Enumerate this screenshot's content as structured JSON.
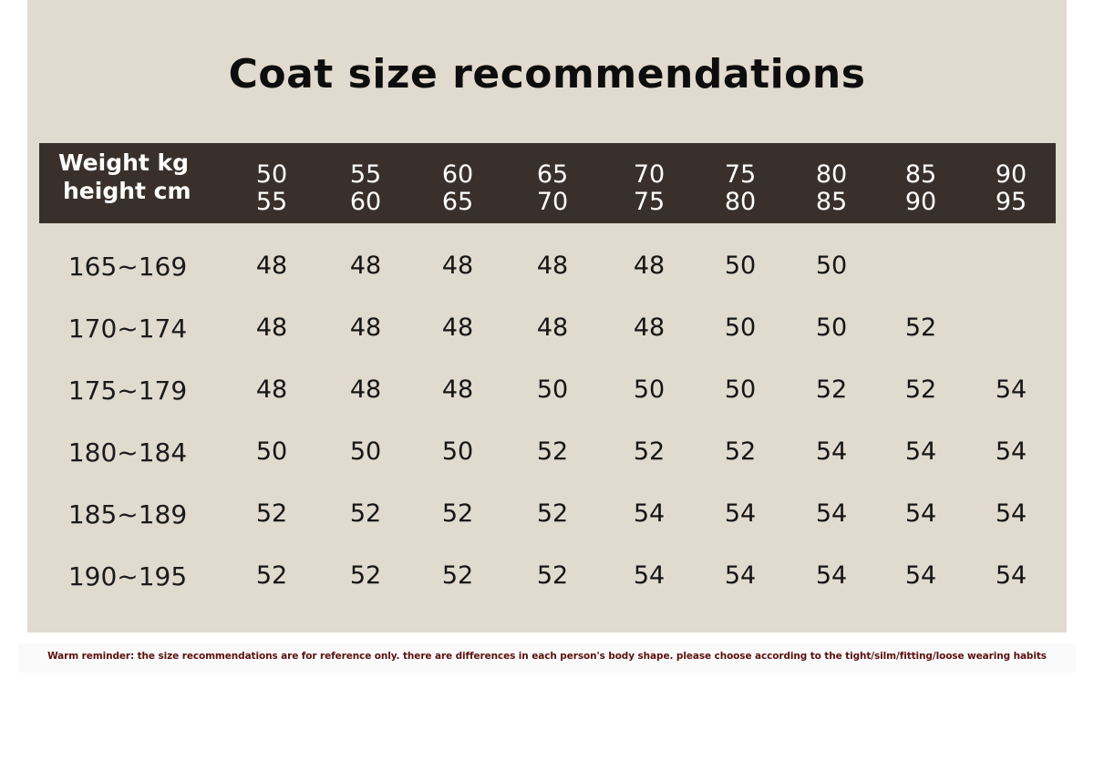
{
  "title": "Coat size recommendations",
  "header": {
    "label_line1": "Weight kg",
    "label_line2": "height cm",
    "weights": [
      [
        "50",
        "55"
      ],
      [
        "55",
        "60"
      ],
      [
        "60",
        "65"
      ],
      [
        "65",
        "70"
      ],
      [
        "70",
        "75"
      ],
      [
        "75",
        "80"
      ],
      [
        "80",
        "85"
      ],
      [
        "85",
        "90"
      ],
      [
        "90",
        "95"
      ]
    ]
  },
  "rows": [
    {
      "height": "165~169",
      "sizes": [
        "48",
        "48",
        "48",
        "48",
        "48",
        "50",
        "50",
        "",
        ""
      ]
    },
    {
      "height": "170~174",
      "sizes": [
        "48",
        "48",
        "48",
        "48",
        "48",
        "50",
        "50",
        "52",
        ""
      ]
    },
    {
      "height": "175~179",
      "sizes": [
        "48",
        "48",
        "48",
        "50",
        "50",
        "50",
        "52",
        "52",
        "54"
      ]
    },
    {
      "height": "180~184",
      "sizes": [
        "50",
        "50",
        "50",
        "52",
        "52",
        "52",
        "54",
        "54",
        "54"
      ]
    },
    {
      "height": "185~189",
      "sizes": [
        "52",
        "52",
        "52",
        "52",
        "54",
        "54",
        "54",
        "54",
        "54"
      ]
    },
    {
      "height": "190~195",
      "sizes": [
        "52",
        "52",
        "52",
        "52",
        "54",
        "54",
        "54",
        "54",
        "54"
      ]
    }
  ],
  "note": "Warm reminder: the size recommendations are for reference only. there are differences in each person's body shape. please choose according to the tight/silm/fitting/loose wearing habits",
  "colors": {
    "panel_background": "#e1dace",
    "header_background": "#3a302b",
    "note_text": "#5a1010"
  }
}
